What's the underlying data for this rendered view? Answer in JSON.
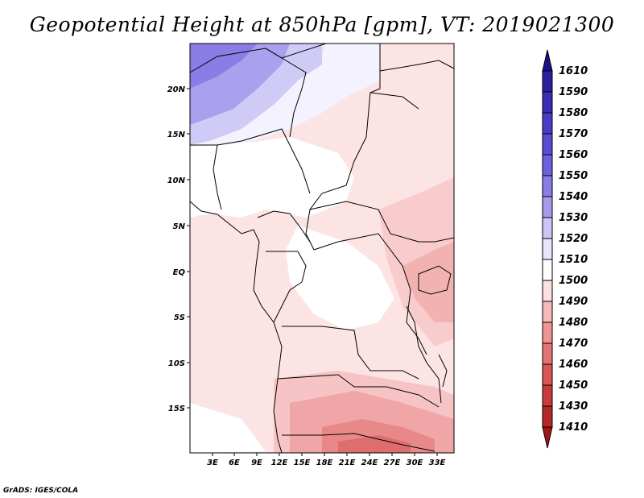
{
  "title": "Geopotential Height at 850hPa [gpm], VT: 2019021300",
  "footer": "GrADS: IGES/COLA",
  "map": {
    "lon_labels": [
      "3E",
      "6E",
      "9E",
      "12E",
      "15E",
      "18E",
      "21E",
      "24E",
      "27E",
      "30E",
      "33E"
    ],
    "lat_labels": [
      "20N",
      "15N",
      "10N",
      "5N",
      "EQ",
      "5S",
      "10S",
      "15S"
    ]
  },
  "colorbar": {
    "levels": [
      "1610",
      "1590",
      "1580",
      "1570",
      "1560",
      "1550",
      "1540",
      "1530",
      "1520",
      "1510",
      "1500",
      "1490",
      "1480",
      "1470",
      "1460",
      "1450",
      "1430",
      "1410"
    ],
    "colors": [
      "#1e0f8c",
      "#2d1ea0",
      "#3a2db4",
      "#4b3cc8",
      "#5a4bd2",
      "#6e60dc",
      "#8a7de6",
      "#a69cee",
      "#cbc6f6",
      "#e8e6fc",
      "#ffffff",
      "#fde0e0",
      "#f6b8b8",
      "#ee9494",
      "#e47474",
      "#d85656",
      "#c83c3c",
      "#b42828",
      "#a01818"
    ]
  }
}
